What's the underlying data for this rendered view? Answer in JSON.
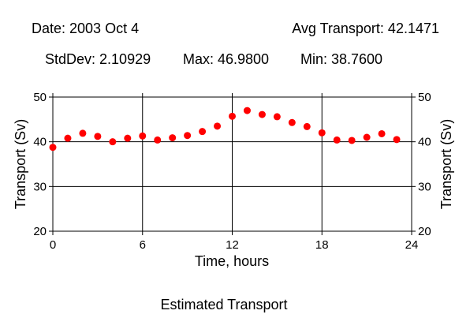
{
  "header": {
    "date": "Date: 2003 Oct 4",
    "avg": "Avg Transport: 42.1471",
    "stddev": "StdDev: 2.10929",
    "max": "Max: 46.9800",
    "min": "Min: 38.7600"
  },
  "caption": "Estimated Transport",
  "chart_data": {
    "type": "scatter",
    "title": "",
    "xlabel": "Time, hours",
    "ylabel": "Transport (Sv)",
    "xlim": [
      0,
      24
    ],
    "ylim": [
      20,
      50
    ],
    "xticks": [
      0,
      6,
      12,
      18,
      24
    ],
    "yticks": [
      20,
      30,
      40,
      50
    ],
    "grid": true,
    "marker_color": "#ff0000",
    "x": [
      0,
      1,
      2,
      3,
      4,
      5,
      6,
      7,
      8,
      9,
      10,
      11,
      12,
      13,
      14,
      15,
      16,
      17,
      18,
      19,
      20,
      21,
      22,
      23
    ],
    "y": [
      38.76,
      40.8,
      41.9,
      41.2,
      40.0,
      40.8,
      41.3,
      40.4,
      40.9,
      41.4,
      42.3,
      43.5,
      45.7,
      46.98,
      46.1,
      45.6,
      44.3,
      43.4,
      42.0,
      40.4,
      40.3,
      41.0,
      41.8,
      40.5
    ]
  }
}
